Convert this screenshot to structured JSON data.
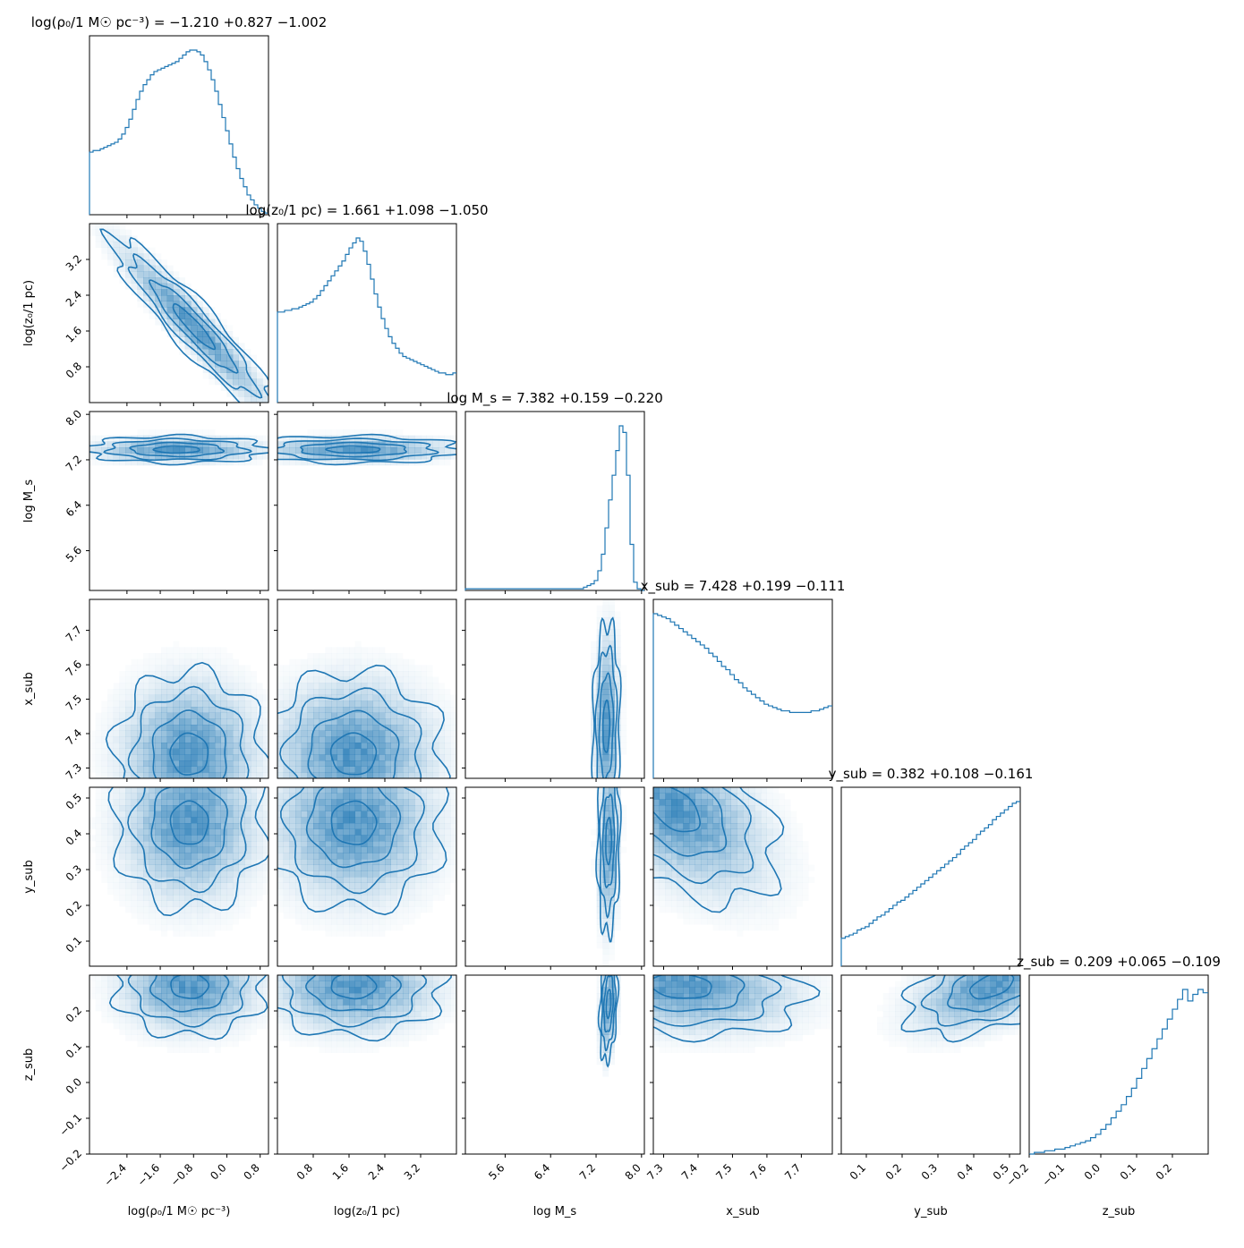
{
  "chart_data": {
    "type": "corner",
    "series_color": "#1f77b4",
    "parameters": [
      {
        "name": "rho0",
        "label": "log(ρ₀/1 M☉ pc⁻³)",
        "title": "log(ρ₀/1 M☉ pc⁻³) = −1.210 +0.827 −1.002",
        "range": [
          -3.3,
          1.0
        ],
        "ticks": [
          -2.4,
          -1.6,
          -0.8,
          0.0,
          0.8
        ],
        "tick_labels": [
          "−2.4",
          "−1.6",
          "−0.8",
          "0.0",
          "0.8"
        ],
        "hist": [
          0.38,
          0.39,
          0.39,
          0.4,
          0.41,
          0.42,
          0.43,
          0.44,
          0.46,
          0.49,
          0.53,
          0.58,
          0.64,
          0.7,
          0.75,
          0.79,
          0.82,
          0.85,
          0.87,
          0.88,
          0.89,
          0.9,
          0.91,
          0.92,
          0.93,
          0.95,
          0.97,
          0.99,
          1.0,
          1.0,
          0.99,
          0.97,
          0.93,
          0.88,
          0.82,
          0.75,
          0.67,
          0.59,
          0.51,
          0.43,
          0.35,
          0.28,
          0.22,
          0.17,
          0.12,
          0.09,
          0.06,
          0.04,
          0.02,
          0.01
        ]
      },
      {
        "name": "z0",
        "label": "log(z₀/1 pc)",
        "title": "log(z₀/1 pc) = 1.661 +1.098 −1.050",
        "range": [
          0.0,
          4.0
        ],
        "ticks": [
          0.8,
          1.6,
          2.4,
          3.2
        ],
        "tick_labels": [
          "0.8",
          "1.6",
          "2.4",
          "3.2"
        ],
        "hist": [
          0.55,
          0.55,
          0.56,
          0.56,
          0.57,
          0.57,
          0.58,
          0.59,
          0.6,
          0.61,
          0.63,
          0.65,
          0.68,
          0.71,
          0.74,
          0.77,
          0.8,
          0.83,
          0.86,
          0.9,
          0.94,
          0.97,
          1.0,
          0.98,
          0.92,
          0.84,
          0.75,
          0.66,
          0.58,
          0.51,
          0.45,
          0.4,
          0.36,
          0.33,
          0.3,
          0.28,
          0.27,
          0.26,
          0.25,
          0.24,
          0.23,
          0.22,
          0.21,
          0.2,
          0.19,
          0.18,
          0.18,
          0.17,
          0.17,
          0.18
        ]
      },
      {
        "name": "logMs",
        "label": "log M_s",
        "title": "log M_s = 7.382 +0.159 −0.220",
        "range": [
          4.9,
          8.05
        ],
        "ticks": [
          5.6,
          6.4,
          7.2,
          8.0
        ],
        "tick_labels": [
          "5.6",
          "6.4",
          "7.2",
          "8.0"
        ],
        "hist": [
          0.01,
          0.01,
          0.01,
          0.01,
          0.01,
          0.01,
          0.01,
          0.01,
          0.01,
          0.01,
          0.01,
          0.01,
          0.01,
          0.01,
          0.01,
          0.01,
          0.01,
          0.01,
          0.01,
          0.01,
          0.01,
          0.01,
          0.01,
          0.01,
          0.01,
          0.01,
          0.01,
          0.01,
          0.01,
          0.01,
          0.01,
          0.01,
          0.01,
          0.02,
          0.03,
          0.04,
          0.06,
          0.12,
          0.22,
          0.38,
          0.55,
          0.7,
          0.85,
          1.0,
          0.96,
          0.7,
          0.28,
          0.05,
          0.01,
          0.0
        ]
      },
      {
        "name": "xsub",
        "label": "x_sub",
        "title": "x_sub = 7.428 +0.199 −0.111",
        "range": [
          7.27,
          7.79
        ],
        "ticks": [
          7.3,
          7.4,
          7.5,
          7.6,
          7.7
        ],
        "tick_labels": [
          "7.3",
          "7.4",
          "7.5",
          "7.6",
          "7.7"
        ],
        "hist": [
          1.0,
          0.99,
          0.98,
          0.97,
          0.95,
          0.93,
          0.91,
          0.89,
          0.87,
          0.85,
          0.83,
          0.81,
          0.79,
          0.76,
          0.74,
          0.71,
          0.68,
          0.66,
          0.63,
          0.6,
          0.58,
          0.55,
          0.53,
          0.51,
          0.49,
          0.47,
          0.45,
          0.44,
          0.43,
          0.42,
          0.41,
          0.41,
          0.4,
          0.4,
          0.4,
          0.4,
          0.4,
          0.41,
          0.41,
          0.42,
          0.43,
          0.44
        ]
      },
      {
        "name": "ysub",
        "label": "y_sub",
        "title": "y_sub = 0.382 +0.108 −0.161",
        "range": [
          0.03,
          0.53
        ],
        "ticks": [
          0.1,
          0.2,
          0.3,
          0.4,
          0.5
        ],
        "tick_labels": [
          "0.1",
          "0.2",
          "0.3",
          "0.4",
          "0.5"
        ],
        "hist": [
          0.17,
          0.18,
          0.19,
          0.2,
          0.22,
          0.23,
          0.24,
          0.26,
          0.28,
          0.3,
          0.31,
          0.33,
          0.35,
          0.37,
          0.39,
          0.4,
          0.42,
          0.44,
          0.46,
          0.48,
          0.5,
          0.52,
          0.54,
          0.56,
          0.58,
          0.6,
          0.62,
          0.64,
          0.66,
          0.68,
          0.71,
          0.73,
          0.75,
          0.77,
          0.8,
          0.82,
          0.84,
          0.86,
          0.89,
          0.91,
          0.93,
          0.95,
          0.97,
          0.99,
          1.0
        ]
      },
      {
        "name": "zsub",
        "label": "z_sub",
        "title": "z_sub = 0.209 +0.065 −0.109",
        "range": [
          -0.2,
          0.3
        ],
        "ticks": [
          -0.2,
          -0.1,
          0.0,
          0.1,
          0.2
        ],
        "tick_labels": [
          "−0.2",
          "−0.1",
          "0.0",
          "0.1",
          "0.2"
        ],
        "hist": [
          0.0,
          0.01,
          0.01,
          0.02,
          0.02,
          0.03,
          0.03,
          0.04,
          0.05,
          0.06,
          0.07,
          0.08,
          0.1,
          0.12,
          0.15,
          0.18,
          0.22,
          0.26,
          0.3,
          0.35,
          0.4,
          0.46,
          0.52,
          0.58,
          0.64,
          0.7,
          0.76,
          0.82,
          0.88,
          0.94,
          1.0,
          0.93,
          0.97,
          1.0,
          0.98
        ]
      }
    ],
    "contours_2d": [
      {
        "x": "rho0",
        "y": "z0",
        "corr": -0.95,
        "cx": -0.8,
        "cy": 1.7,
        "sx": 1.0,
        "sy": 1.0
      },
      {
        "x": "rho0",
        "y": "logMs",
        "corr": 0.0,
        "cx": -1.2,
        "cy": 7.38,
        "sx": 1.1,
        "sy": 0.12
      },
      {
        "x": "z0",
        "y": "logMs",
        "corr": 0.0,
        "cx": 1.7,
        "cy": 7.38,
        "sx": 1.2,
        "sy": 0.12
      },
      {
        "x": "rho0",
        "y": "xsub",
        "corr": 0.0,
        "cx": -0.9,
        "cy": 7.34,
        "sx": 0.9,
        "sy": 0.12
      },
      {
        "x": "z0",
        "y": "xsub",
        "corr": 0.0,
        "cx": 1.7,
        "cy": 7.34,
        "sx": 1.0,
        "sy": 0.12
      },
      {
        "x": "logMs",
        "y": "xsub",
        "corr": 0.1,
        "cx": 7.38,
        "cy": 7.42,
        "sx": 0.12,
        "sy": 0.15
      },
      {
        "x": "rho0",
        "y": "ysub",
        "corr": 0.0,
        "cx": -0.9,
        "cy": 0.43,
        "sx": 0.9,
        "sy": 0.12
      },
      {
        "x": "z0",
        "y": "ysub",
        "corr": 0.0,
        "cx": 1.7,
        "cy": 0.43,
        "sx": 1.0,
        "sy": 0.12
      },
      {
        "x": "logMs",
        "y": "ysub",
        "corr": 0.1,
        "cx": 7.42,
        "cy": 0.38,
        "sx": 0.1,
        "sy": 0.13
      },
      {
        "x": "xsub",
        "y": "ysub",
        "corr": -0.5,
        "cx": 7.33,
        "cy": 0.47,
        "sx": 0.15,
        "sy": 0.13
      },
      {
        "x": "rho0",
        "y": "zsub",
        "corr": 0.0,
        "cx": -0.9,
        "cy": 0.27,
        "sx": 0.9,
        "sy": 0.07
      },
      {
        "x": "z0",
        "y": "zsub",
        "corr": 0.0,
        "cx": 1.7,
        "cy": 0.27,
        "sx": 1.0,
        "sy": 0.07
      },
      {
        "x": "logMs",
        "y": "zsub",
        "corr": 0.3,
        "cx": 7.42,
        "cy": 0.22,
        "sx": 0.08,
        "sy": 0.08
      },
      {
        "x": "xsub",
        "y": "zsub",
        "corr": -0.2,
        "cx": 7.35,
        "cy": 0.27,
        "sx": 0.18,
        "sy": 0.07
      },
      {
        "x": "ysub",
        "y": "zsub",
        "corr": 0.5,
        "cx": 0.45,
        "cy": 0.27,
        "sx": 0.12,
        "sy": 0.07
      }
    ]
  }
}
